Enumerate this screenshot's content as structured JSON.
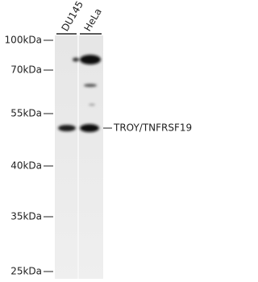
{
  "lanes": [
    "DU145",
    "HeLa"
  ],
  "markers": [
    "100kDa",
    "70kDa",
    "55kDa",
    "40kDa",
    "35kDa",
    "25kDa"
  ],
  "band_label": "TROY/TNFRSF19"
}
